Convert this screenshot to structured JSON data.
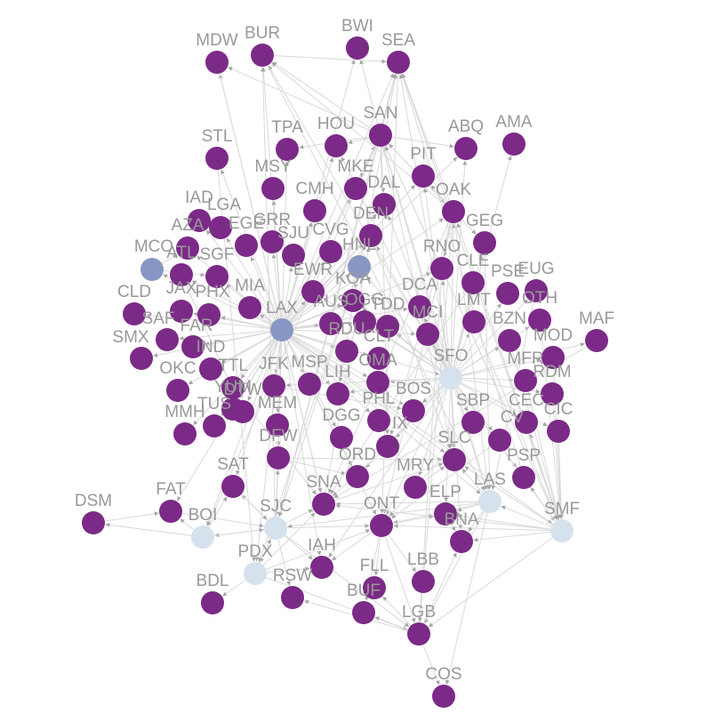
{
  "colors": {
    "background": "#ffffff",
    "edge": "#d9d9d9",
    "arrow": "#a6a6a6",
    "label": "#999999",
    "tier": {
      "high": "#8896c3",
      "mid": "#d6e1ee",
      "low": "#7b2a87"
    }
  },
  "nodes": [
    {
      "id": "MDW",
      "label": "MDW",
      "tier": "low"
    },
    {
      "id": "BUR",
      "label": "BUR",
      "tier": "low"
    },
    {
      "id": "BWI",
      "label": "BWI",
      "tier": "low"
    },
    {
      "id": "SEA",
      "label": "SEA",
      "tier": "low"
    },
    {
      "id": "STL",
      "label": "STL",
      "tier": "low"
    },
    {
      "id": "TPA",
      "label": "TPA",
      "tier": "low"
    },
    {
      "id": "HOU",
      "label": "HOU",
      "tier": "low"
    },
    {
      "id": "SAN",
      "label": "SAN",
      "tier": "low"
    },
    {
      "id": "ABQ",
      "label": "ABQ",
      "tier": "low"
    },
    {
      "id": "AMA",
      "label": "AMA",
      "tier": "low"
    },
    {
      "id": "MSY",
      "label": "MSY",
      "tier": "low"
    },
    {
      "id": "MKE",
      "label": "MKE",
      "tier": "low"
    },
    {
      "id": "PIT",
      "label": "PIT",
      "tier": "low"
    },
    {
      "id": "CMH",
      "label": "CMH",
      "tier": "low"
    },
    {
      "id": "DAL",
      "label": "DAL",
      "tier": "low"
    },
    {
      "id": "OAK",
      "label": "OAK",
      "tier": "low"
    },
    {
      "id": "IAD",
      "label": "IAD",
      "tier": "low"
    },
    {
      "id": "LGA",
      "label": "LGA",
      "tier": "low"
    },
    {
      "id": "DEN",
      "label": "DEN",
      "tier": "low"
    },
    {
      "id": "GEG",
      "label": "GEG",
      "tier": "low"
    },
    {
      "id": "AZA",
      "label": "AZA",
      "tier": "low"
    },
    {
      "id": "EGE",
      "label": "EGE",
      "tier": "low"
    },
    {
      "id": "GRR",
      "label": "GRR",
      "tier": "low"
    },
    {
      "id": "SJU",
      "label": "SJU",
      "tier": "low"
    },
    {
      "id": "CVG",
      "label": "CVG",
      "tier": "low"
    },
    {
      "id": "MCO",
      "label": "MCO",
      "tier": "high"
    },
    {
      "id": "HNL",
      "label": "HNL",
      "tier": "high"
    },
    {
      "id": "RNO",
      "label": "RNO",
      "tier": "low"
    },
    {
      "id": "SGF",
      "label": "SGF",
      "tier": "low"
    },
    {
      "id": "ATL",
      "label": "ATL",
      "tier": "low"
    },
    {
      "id": "CLE",
      "label": "CLE",
      "tier": "low"
    },
    {
      "id": "PSE",
      "label": "PSE",
      "tier": "low"
    },
    {
      "id": "EUG",
      "label": "EUG",
      "tier": "low"
    },
    {
      "id": "EWR",
      "label": "EWR",
      "tier": "low"
    },
    {
      "id": "KOA",
      "label": "KOA",
      "tier": "low"
    },
    {
      "id": "DCA",
      "label": "DCA",
      "tier": "low"
    },
    {
      "id": "CLD",
      "label": "CLD",
      "tier": "low"
    },
    {
      "id": "JAX",
      "label": "JAX",
      "tier": "low"
    },
    {
      "id": "PHX",
      "label": "PHX",
      "tier": "low"
    },
    {
      "id": "MIA",
      "label": "MIA",
      "tier": "low"
    },
    {
      "id": "LAX",
      "label": "LAX",
      "tier": "high"
    },
    {
      "id": "AUS",
      "label": "AUS",
      "tier": "low"
    },
    {
      "id": "OGG",
      "label": "OGG",
      "tier": "low"
    },
    {
      "id": "TDD",
      "label": "TDD",
      "tier": "low"
    },
    {
      "id": "LMT",
      "label": "LMT",
      "tier": "low"
    },
    {
      "id": "OTH",
      "label": "OTH",
      "tier": "low"
    },
    {
      "id": "MAF",
      "label": "MAF",
      "tier": "low"
    },
    {
      "id": "SAF",
      "label": "SAF",
      "tier": "low"
    },
    {
      "id": "FAR",
      "label": "FAR",
      "tier": "low"
    },
    {
      "id": "MCI",
      "label": "MCI",
      "tier": "low"
    },
    {
      "id": "BZN",
      "label": "BZN",
      "tier": "low"
    },
    {
      "id": "SMX",
      "label": "SMX",
      "tier": "low"
    },
    {
      "id": "IND",
      "label": "IND",
      "tier": "low"
    },
    {
      "id": "RDU",
      "label": "RDU",
      "tier": "low"
    },
    {
      "id": "CLT",
      "label": "CLT",
      "tier": "low"
    },
    {
      "id": "MOD",
      "label": "MOD",
      "tier": "low"
    },
    {
      "id": "OKC",
      "label": "OKC",
      "tier": "low"
    },
    {
      "id": "TTL",
      "label": "TTL",
      "tier": "low"
    },
    {
      "id": "JFK",
      "label": "JFK",
      "tier": "low"
    },
    {
      "id": "MSP",
      "label": "MSP",
      "tier": "low"
    },
    {
      "id": "LIH",
      "label": "LIH",
      "tier": "low"
    },
    {
      "id": "OMA",
      "label": "OMA",
      "tier": "low"
    },
    {
      "id": "SFO",
      "label": "SFO",
      "tier": "mid"
    },
    {
      "id": "MFR",
      "label": "MFR",
      "tier": "low"
    },
    {
      "id": "RDM",
      "label": "RDM",
      "tier": "low"
    },
    {
      "id": "YUM",
      "label": "YUM",
      "tier": "low"
    },
    {
      "id": "BOS",
      "label": "BOS",
      "tier": "low"
    },
    {
      "id": "TUS",
      "label": "TUS",
      "tier": "low"
    },
    {
      "id": "DTW",
      "label": "DTW",
      "tier": "low"
    },
    {
      "id": "PHL",
      "label": "PHL",
      "tier": "low"
    },
    {
      "id": "SBP",
      "label": "SBP",
      "tier": "low"
    },
    {
      "id": "CEC",
      "label": "CEC",
      "tier": "low"
    },
    {
      "id": "CIC",
      "label": "CIC",
      "tier": "low"
    },
    {
      "id": "MMH",
      "label": "MMH",
      "tier": "low"
    },
    {
      "id": "MEM",
      "label": "MEM",
      "tier": "low"
    },
    {
      "id": "DGG",
      "label": "DGG",
      "tier": "low"
    },
    {
      "id": "PHX2",
      "label": "IX",
      "tier": "low"
    },
    {
      "id": "CVD",
      "label": "CV",
      "tier": "low"
    },
    {
      "id": "DFW",
      "label": "DFW",
      "tier": "low"
    },
    {
      "id": "SLC",
      "label": "SLC",
      "tier": "low"
    },
    {
      "id": "ORD",
      "label": "ORD",
      "tier": "low"
    },
    {
      "id": "SAT",
      "label": "SAT",
      "tier": "low"
    },
    {
      "id": "PSP",
      "label": "PSP",
      "tier": "low"
    },
    {
      "id": "MRY",
      "label": "MRY",
      "tier": "low"
    },
    {
      "id": "FAT",
      "label": "FAT",
      "tier": "low"
    },
    {
      "id": "SNA",
      "label": "SNA",
      "tier": "low"
    },
    {
      "id": "LAS",
      "label": "LAS",
      "tier": "mid"
    },
    {
      "id": "DSM",
      "label": "DSM",
      "tier": "low"
    },
    {
      "id": "BOI",
      "label": "BOI",
      "tier": "mid"
    },
    {
      "id": "SJC",
      "label": "SJC",
      "tier": "mid"
    },
    {
      "id": "ONT",
      "label": "ONT",
      "tier": "low"
    },
    {
      "id": "ELP",
      "label": "ELP",
      "tier": "low"
    },
    {
      "id": "SMF",
      "label": "SMF",
      "tier": "mid"
    },
    {
      "id": "BNA",
      "label": "BNA",
      "tier": "low"
    },
    {
      "id": "PDX",
      "label": "PDX",
      "tier": "mid"
    },
    {
      "id": "IAH",
      "label": "IAH",
      "tier": "low"
    },
    {
      "id": "LBB",
      "label": "LBB",
      "tier": "low"
    },
    {
      "id": "BDL",
      "label": "BDL",
      "tier": "low"
    },
    {
      "id": "RSW",
      "label": "RSW",
      "tier": "low"
    },
    {
      "id": "FLL",
      "label": "FLL",
      "tier": "low"
    },
    {
      "id": "BUF",
      "label": "BUF",
      "tier": "low"
    },
    {
      "id": "LGB",
      "label": "LGB",
      "tier": "low"
    },
    {
      "id": "COS",
      "label": "COS",
      "tier": "low"
    }
  ],
  "edges": [
    [
      "LAX",
      "MDW"
    ],
    [
      "LAX",
      "BUR"
    ],
    [
      "LAX",
      "BWI"
    ],
    [
      "LAX",
      "SEA"
    ],
    [
      "LAX",
      "STL"
    ],
    [
      "LAX",
      "TPA"
    ],
    [
      "LAX",
      "HOU"
    ],
    [
      "LAX",
      "SAN"
    ],
    [
      "LAX",
      "MSY"
    ],
    [
      "LAX",
      "MKE"
    ],
    [
      "LAX",
      "CMH"
    ],
    [
      "LAX",
      "DAL"
    ],
    [
      "LAX",
      "OAK"
    ],
    [
      "LAX",
      "IAD"
    ],
    [
      "LAX",
      "LGA"
    ],
    [
      "LAX",
      "DEN"
    ],
    [
      "LAX",
      "AZA"
    ],
    [
      "LAX",
      "EGE"
    ],
    [
      "LAX",
      "GRR"
    ],
    [
      "LAX",
      "SJU"
    ],
    [
      "LAX",
      "CVG"
    ],
    [
      "LAX",
      "MCO"
    ],
    [
      "LAX",
      "HNL"
    ],
    [
      "LAX",
      "SGF"
    ],
    [
      "LAX",
      "ATL"
    ],
    [
      "LAX",
      "EWR"
    ],
    [
      "LAX",
      "KOA"
    ],
    [
      "LAX",
      "CLD"
    ],
    [
      "LAX",
      "JAX"
    ],
    [
      "LAX",
      "PHX"
    ],
    [
      "LAX",
      "MIA"
    ],
    [
      "LAX",
      "AUS"
    ],
    [
      "LAX",
      "OGG"
    ],
    [
      "LAX",
      "SAF"
    ],
    [
      "LAX",
      "FAR"
    ],
    [
      "LAX",
      "SMX"
    ],
    [
      "LAX",
      "IND"
    ],
    [
      "LAX",
      "RDU"
    ],
    [
      "LAX",
      "CLT"
    ],
    [
      "LAX",
      "OKC"
    ],
    [
      "LAX",
      "TTL"
    ],
    [
      "LAX",
      "JFK"
    ],
    [
      "LAX",
      "MSP"
    ],
    [
      "LAX",
      "LIH"
    ],
    [
      "LAX",
      "OMA"
    ],
    [
      "LAX",
      "SFO"
    ],
    [
      "LAX",
      "YUM"
    ],
    [
      "LAX",
      "TUS"
    ],
    [
      "LAX",
      "DTW"
    ],
    [
      "LAX",
      "PHL"
    ],
    [
      "LAX",
      "MMH"
    ],
    [
      "LAX",
      "MEM"
    ],
    [
      "LAX",
      "DGG"
    ],
    [
      "LAX",
      "DFW"
    ],
    [
      "LAX",
      "SLC"
    ],
    [
      "LAX",
      "ORD"
    ],
    [
      "LAX",
      "SAT"
    ],
    [
      "LAX",
      "SNA"
    ],
    [
      "LAX",
      "LAS"
    ],
    [
      "LAX",
      "BOI"
    ],
    [
      "LAX",
      "SJC"
    ],
    [
      "LAX",
      "ONT"
    ],
    [
      "LAX",
      "SMF"
    ],
    [
      "LAX",
      "PDX"
    ],
    [
      "LAX",
      "IAH"
    ],
    [
      "LAX",
      "FAT"
    ],
    [
      "LAX",
      "BOS"
    ],
    [
      "LAX",
      "DCA"
    ],
    [
      "LAX",
      "MCI"
    ],
    [
      "LAX",
      "RNO"
    ],
    [
      "LAX",
      "PIT"
    ],
    [
      "LAX",
      "ABQ"
    ],
    [
      "SFO",
      "SAN"
    ],
    [
      "SFO",
      "SEA"
    ],
    [
      "SFO",
      "OAK"
    ],
    [
      "SFO",
      "ABQ"
    ],
    [
      "SFO",
      "AMA"
    ],
    [
      "SFO",
      "PIT"
    ],
    [
      "SFO",
      "GEG"
    ],
    [
      "SFO",
      "RNO"
    ],
    [
      "SFO",
      "CLE"
    ],
    [
      "SFO",
      "PSE"
    ],
    [
      "SFO",
      "EUG"
    ],
    [
      "SFO",
      "LMT"
    ],
    [
      "SFO",
      "OTH"
    ],
    [
      "SFO",
      "BZN"
    ],
    [
      "SFO",
      "MOD"
    ],
    [
      "SFO",
      "MFR"
    ],
    [
      "SFO",
      "RDM"
    ],
    [
      "SFO",
      "SBP"
    ],
    [
      "SFO",
      "CEC"
    ],
    [
      "SFO",
      "CIC"
    ],
    [
      "SFO",
      "CVD"
    ],
    [
      "SFO",
      "SLC"
    ],
    [
      "SFO",
      "PSP"
    ],
    [
      "SFO",
      "MRY"
    ],
    [
      "SFO",
      "ELP"
    ],
    [
      "SFO",
      "BNA"
    ],
    [
      "SFO",
      "LAS"
    ],
    [
      "SFO",
      "SMF"
    ],
    [
      "SFO",
      "MAF"
    ],
    [
      "SFO",
      "DCA"
    ],
    [
      "SFO",
      "MCI"
    ],
    [
      "SFO",
      "TDD"
    ],
    [
      "SFO",
      "BOS"
    ],
    [
      "SFO",
      "OMA"
    ],
    [
      "SFO",
      "PHX2"
    ],
    [
      "SFO",
      "ONT"
    ],
    [
      "SFO",
      "HNL"
    ],
    [
      "SFO",
      "KOA"
    ],
    [
      "SFO",
      "LIH"
    ],
    [
      "SFO",
      "OGG"
    ],
    [
      "SFO",
      "DEN"
    ],
    [
      "SFO",
      "DAL"
    ],
    [
      "SFO",
      "JFK"
    ],
    [
      "SFO",
      "EWR"
    ],
    [
      "SFO",
      "ORD"
    ],
    [
      "SFO",
      "IAH"
    ],
    [
      "SFO",
      "BUR"
    ],
    [
      "SFO",
      "HOU"
    ],
    [
      "SAN",
      "SEA"
    ],
    [
      "SAN",
      "BWI"
    ],
    [
      "SAN",
      "HOU"
    ],
    [
      "SAN",
      "ABQ"
    ],
    [
      "SAN",
      "MKE"
    ],
    [
      "SAN",
      "DAL"
    ],
    [
      "SAN",
      "OAK"
    ],
    [
      "SAN",
      "SMF"
    ],
    [
      "SAN",
      "SJC"
    ],
    [
      "SAN",
      "LAS"
    ],
    [
      "SAN",
      "PHX2"
    ],
    [
      "SAN",
      "BOI"
    ],
    [
      "SAN",
      "BUR"
    ],
    [
      "SAN",
      "MDW"
    ],
    [
      "SAN",
      "TPA"
    ],
    [
      "SAN",
      "SLC"
    ],
    [
      "OAK",
      "SEA"
    ],
    [
      "OAK",
      "SAN"
    ],
    [
      "OAK",
      "GEG"
    ],
    [
      "OAK",
      "RNO"
    ],
    [
      "OAK",
      "PIT"
    ],
    [
      "OAK",
      "LAS"
    ],
    [
      "OAK",
      "PHX2"
    ],
    [
      "OAK",
      "SNA"
    ],
    [
      "OAK",
      "ONT"
    ],
    [
      "OAK",
      "LGB"
    ],
    [
      "OAK",
      "BUR"
    ],
    [
      "SMF",
      "LAS"
    ],
    [
      "SMF",
      "SNA"
    ],
    [
      "SMF",
      "ONT"
    ],
    [
      "SMF",
      "SAN"
    ],
    [
      "SMF",
      "SEA"
    ],
    [
      "SMF",
      "PSP"
    ],
    [
      "SMF",
      "LGB"
    ],
    [
      "SMF",
      "BNA"
    ],
    [
      "SMF",
      "ELP"
    ],
    [
      "SMF",
      "CEC"
    ],
    [
      "SMF",
      "OAK"
    ],
    [
      "SMF",
      "SLC"
    ],
    [
      "LAS",
      "SNA"
    ],
    [
      "LAS",
      "ONT"
    ],
    [
      "LAS",
      "SJC"
    ],
    [
      "LAS",
      "BNA"
    ],
    [
      "LAS",
      "ELP"
    ],
    [
      "LAS",
      "SLC"
    ],
    [
      "LAS",
      "LGB"
    ],
    [
      "LAS",
      "COS"
    ],
    [
      "SJC",
      "SNA"
    ],
    [
      "SJC",
      "ONT"
    ],
    [
      "SJC",
      "PDX"
    ],
    [
      "SJC",
      "BOI"
    ],
    [
      "SJC",
      "SEA"
    ],
    [
      "SJC",
      "IAH"
    ],
    [
      "SJC",
      "DFW"
    ],
    [
      "SJC",
      "SAT"
    ],
    [
      "SJC",
      "BUR"
    ],
    [
      "SJC",
      "LGB"
    ],
    [
      "SJC",
      "RSW"
    ],
    [
      "PDX",
      "SNA"
    ],
    [
      "PDX",
      "ONT"
    ],
    [
      "PDX",
      "BDL"
    ],
    [
      "PDX",
      "SJC"
    ],
    [
      "PDX",
      "IAH"
    ],
    [
      "PDX",
      "LGB"
    ],
    [
      "BOI",
      "DSM"
    ],
    [
      "BOI",
      "FAT"
    ],
    [
      "BOI",
      "SAT"
    ],
    [
      "BOI",
      "SJC"
    ],
    [
      "ONT",
      "LGB"
    ],
    [
      "ONT",
      "IAH"
    ],
    [
      "ONT",
      "FLL"
    ],
    [
      "ONT",
      "BUF"
    ],
    [
      "ONT",
      "LBB"
    ],
    [
      "ONT",
      "ELP"
    ],
    [
      "LGB",
      "COS"
    ],
    [
      "LGB",
      "BUF"
    ],
    [
      "LGB",
      "FLL"
    ],
    [
      "LGB",
      "RSW"
    ],
    [
      "LGB",
      "BNA"
    ],
    [
      "HNL",
      "KOA"
    ],
    [
      "HNL",
      "OGG"
    ],
    [
      "HNL",
      "LIH"
    ],
    [
      "HNL",
      "SEA"
    ],
    [
      "HNL",
      "PDX"
    ],
    [
      "HNL",
      "SJC"
    ],
    [
      "MCO",
      "AZA"
    ],
    [
      "MCO",
      "SGF"
    ],
    [
      "DFW",
      "ORD"
    ],
    [
      "DFW",
      "SLC"
    ],
    [
      "DEN",
      "SLC"
    ],
    [
      "PHX2",
      "SNA"
    ],
    [
      "SNA",
      "SLC"
    ],
    [
      "SNA",
      "DEN"
    ],
    [
      "MSP",
      "ORD"
    ],
    [
      "ATL",
      "DTW"
    ],
    [
      "JFK",
      "BOS"
    ],
    [
      "DSM",
      "FAT"
    ],
    [
      "CLE",
      "SNA"
    ],
    [
      "MAF",
      "SNA"
    ],
    [
      "ELP",
      "BNA"
    ],
    [
      "SAT",
      "SJC"
    ],
    [
      "FAT",
      "SJC"
    ],
    [
      "TTL",
      "SNA"
    ],
    [
      "STL",
      "PDX"
    ],
    [
      "MDW",
      "SNA"
    ],
    [
      "BUR",
      "SEA"
    ],
    [
      "BUR",
      "LAS"
    ],
    [
      "SEA",
      "SMF"
    ],
    [
      "SEA",
      "ONT"
    ],
    [
      "CVD",
      "ONT"
    ],
    [
      "SBP",
      "ONT"
    ],
    [
      "MRY",
      "SLC"
    ],
    [
      "PSP",
      "SEA"
    ],
    [
      "GEG",
      "LAS"
    ],
    [
      "EUG",
      "LAS"
    ],
    [
      "RNO",
      "LGB"
    ],
    [
      "OTH",
      "SMF"
    ],
    [
      "RDM",
      "SMF"
    ],
    [
      "MFR",
      "SMF"
    ],
    [
      "CIC",
      "SMF"
    ],
    [
      "MOD",
      "SMF"
    ],
    [
      "BZN",
      "SMF"
    ],
    [
      "LMT",
      "SMF"
    ]
  ]
}
